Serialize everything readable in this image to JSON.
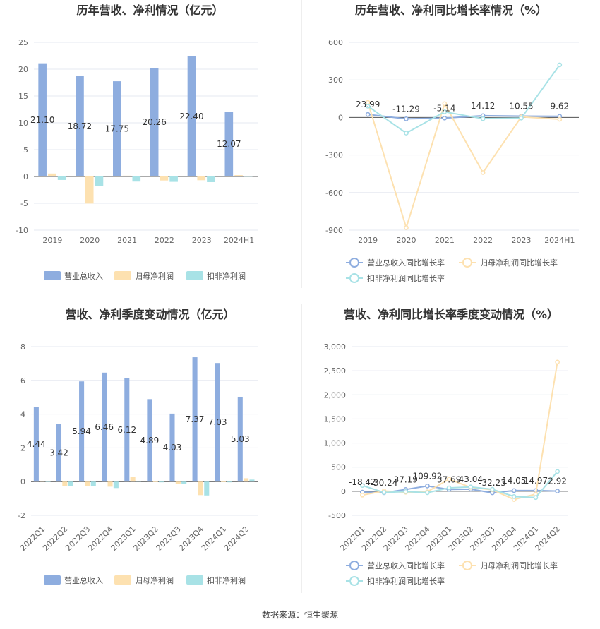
{
  "source_label": "数据来源：恒生聚源",
  "colors": {
    "revenue": "#8eaddf",
    "net_profit": "#fde1b0",
    "deducted_profit": "#a8e2e6",
    "revenue_line": "#8eaddf",
    "net_profit_line": "#fde1b0",
    "deducted_profit_line": "#a8e2e6"
  },
  "chart_data": [
    {
      "id": "annual-amount",
      "type": "bar",
      "title": "历年营收、净利情况（亿元）",
      "categories": [
        "2019",
        "2020",
        "2021",
        "2022",
        "2023",
        "2024H1"
      ],
      "ylim": [
        -10,
        25
      ],
      "yticks": [
        -10,
        -5,
        0,
        5,
        10,
        15,
        20,
        25
      ],
      "series": [
        {
          "name": "营业总收入",
          "values": [
            21.1,
            18.72,
            17.75,
            20.26,
            22.4,
            12.07
          ],
          "labels": [
            "21.10",
            "18.72",
            "17.75",
            "20.26",
            "22.40",
            "12.07"
          ]
        },
        {
          "name": "归母净利润",
          "values": [
            0.55,
            -5.05,
            0.15,
            -0.75,
            -0.7,
            0.25
          ]
        },
        {
          "name": "扣非净利润",
          "values": [
            -0.65,
            -1.75,
            -0.95,
            -1.0,
            -1.05,
            0.1
          ]
        }
      ],
      "legend": "bottom"
    },
    {
      "id": "annual-growth",
      "type": "line",
      "title": "历年营收、净利同比增长率情况（%）",
      "categories": [
        "2019",
        "2020",
        "2021",
        "2022",
        "2023",
        "2024H1"
      ],
      "ylim": [
        -900,
        600
      ],
      "yticks": [
        -900,
        -600,
        -300,
        0,
        300,
        600
      ],
      "series": [
        {
          "name": "营业总收入同比增长率",
          "values": [
            23.99,
            -11.29,
            -5.14,
            14.12,
            10.55,
            9.62
          ],
          "labels": [
            "23.99",
            "-11.29",
            "-5.14",
            "14.12",
            "10.55",
            "9.62"
          ]
        },
        {
          "name": "归母净利润同比增长率",
          "values": [
            120,
            -880,
            110,
            -440,
            5,
            -15
          ]
        },
        {
          "name": "扣非净利润同比增长率",
          "values": [
            90,
            -125,
            45,
            -10,
            -5,
            420
          ]
        }
      ],
      "legend": "bottom"
    },
    {
      "id": "quarterly-amount",
      "type": "bar",
      "title": "营收、净利季度变动情况（亿元）",
      "categories": [
        "2022Q1",
        "2022Q2",
        "2022Q3",
        "2022Q4",
        "2023Q1",
        "2023Q2",
        "2023Q3",
        "2023Q4",
        "2024Q1",
        "2024Q2"
      ],
      "ylim": [
        -2,
        8
      ],
      "yticks": [
        -2,
        0,
        2,
        4,
        6,
        8
      ],
      "series": [
        {
          "name": "营业总收入",
          "values": [
            4.44,
            3.42,
            5.94,
            6.46,
            6.12,
            4.89,
            4.03,
            7.37,
            7.03,
            5.03
          ],
          "labels": [
            "4.44",
            "3.42",
            "5.94",
            "6.46",
            "6.12",
            "4.89",
            "4.03",
            "7.37",
            "7.03",
            "5.03"
          ]
        },
        {
          "name": "归母净利润",
          "values": [
            0.05,
            -0.25,
            -0.25,
            -0.3,
            0.3,
            0.02,
            -0.15,
            -0.8,
            0.02,
            0.2
          ]
        },
        {
          "name": "扣非净利润",
          "values": [
            0.03,
            -0.28,
            -0.28,
            -0.38,
            0.05,
            -0.03,
            -0.12,
            -0.82,
            -0.02,
            0.12
          ]
        }
      ],
      "legend": "bottom"
    },
    {
      "id": "quarterly-growth",
      "type": "line",
      "title": "营收、净利同比增长率季度变动情况（%）",
      "categories": [
        "2022Q1",
        "2022Q2",
        "2022Q3",
        "2022Q4",
        "2023Q1",
        "2023Q2",
        "2023Q3",
        "2023Q4",
        "2024Q1",
        "2024Q2"
      ],
      "ylim": [
        -500,
        3000
      ],
      "yticks": [
        -500,
        0,
        500,
        1000,
        1500,
        2000,
        2500,
        3000
      ],
      "ytick_labels": [
        "-500",
        "0",
        "500",
        "1,000",
        "1,500",
        "2,000",
        "2,500",
        "3,000"
      ],
      "series": [
        {
          "name": "营业总收入同比增长率",
          "values": [
            -18.42,
            -30.24,
            37.19,
            109.92,
            37.69,
            43.04,
            -32.23,
            14.05,
            14.97,
            2.92
          ],
          "labels": [
            "-18.42",
            "-30.24",
            "37.19",
            "109.92",
            "37.69",
            "43.04",
            "-32.23",
            "14.05",
            "14.97",
            "2.92"
          ]
        },
        {
          "name": "归母净利润同比增长率",
          "values": [
            -80,
            5,
            -20,
            -10,
            250,
            80,
            30,
            -170,
            -60,
            2680
          ]
        },
        {
          "name": "扣非净利润同比增长率",
          "values": [
            120,
            -25,
            -5,
            -30,
            70,
            90,
            40,
            -110,
            -130,
            410
          ]
        }
      ],
      "legend": "bottom"
    }
  ]
}
